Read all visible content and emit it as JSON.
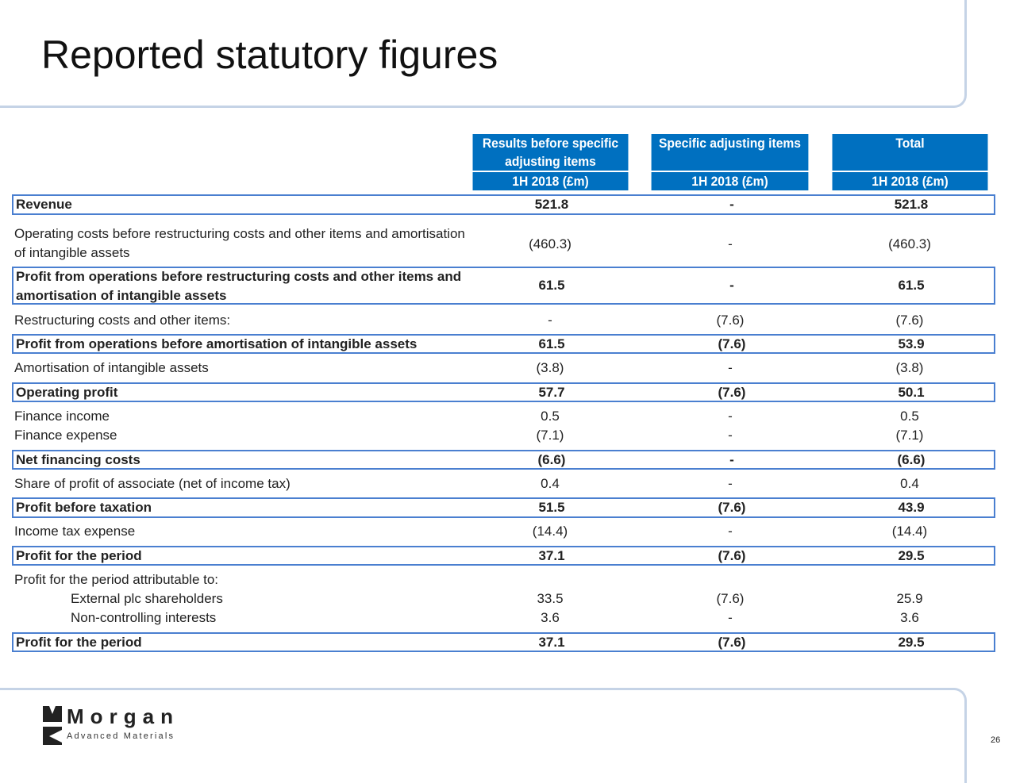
{
  "title": "Reported statutory figures",
  "headers": [
    {
      "label": "Results before specific adjusting items",
      "period": "1H 2018 (£m)"
    },
    {
      "label": "Specific adjusting items",
      "period": "1H 2018 (£m)"
    },
    {
      "label": "Total",
      "period": "1H 2018 (£m)"
    }
  ],
  "rows": [
    {
      "label": "Revenue",
      "values": [
        "521.8",
        "-",
        "521.8"
      ],
      "bold": true,
      "boxed": true
    },
    {
      "label": "Operating costs before restructuring costs and other items and amortisation of intangible assets",
      "values": [
        "(460.3)",
        "-",
        "(460.3)"
      ],
      "bold": false,
      "boxed": false
    },
    {
      "label": "Profit from operations before restructuring costs and other items and amortisation of intangible assets",
      "values": [
        "61.5",
        "-",
        "61.5"
      ],
      "bold": true,
      "boxed": true
    },
    {
      "label": "Restructuring costs and other items:",
      "values": [
        "-",
        "(7.6)",
        "(7.6)"
      ],
      "bold": false,
      "boxed": false
    },
    {
      "label": "Profit from operations before amortisation of intangible assets",
      "values": [
        "61.5",
        "(7.6)",
        "53.9"
      ],
      "bold": true,
      "boxed": true
    },
    {
      "label": "Amortisation of intangible assets",
      "values": [
        "(3.8)",
        "-",
        "(3.8)"
      ],
      "bold": false,
      "boxed": false
    },
    {
      "label": "Operating profit",
      "values": [
        "57.7",
        "(7.6)",
        "50.1"
      ],
      "bold": true,
      "boxed": true
    },
    {
      "label": "Finance income",
      "values": [
        "0.5",
        "-",
        "0.5"
      ],
      "bold": false,
      "boxed": false
    },
    {
      "label": "Finance expense",
      "values": [
        "(7.1)",
        "-",
        "(7.1)"
      ],
      "bold": false,
      "boxed": false
    },
    {
      "label": "Net financing costs",
      "values": [
        "(6.6)",
        "-",
        "(6.6)"
      ],
      "bold": true,
      "boxed": true
    },
    {
      "label": "Share of profit of associate (net of income tax)",
      "values": [
        "0.4",
        "-",
        "0.4"
      ],
      "bold": false,
      "boxed": false
    },
    {
      "label": "Profit before taxation",
      "values": [
        "51.5",
        "(7.6)",
        "43.9"
      ],
      "bold": true,
      "boxed": true
    },
    {
      "label": "Income tax expense",
      "values": [
        "(14.4)",
        "-",
        "(14.4)"
      ],
      "bold": false,
      "boxed": false
    },
    {
      "label": "Profit for the period",
      "values": [
        "37.1",
        "(7.6)",
        "29.5"
      ],
      "bold": true,
      "boxed": true
    },
    {
      "label": "Profit for the period attributable to:",
      "values": [
        "",
        "",
        ""
      ],
      "bold": false,
      "boxed": false
    },
    {
      "label": "External plc shareholders",
      "values": [
        "33.5",
        "(7.6)",
        "25.9"
      ],
      "bold": false,
      "boxed": false,
      "indent": true
    },
    {
      "label": "Non-controlling interests",
      "values": [
        "3.6",
        "-",
        "3.6"
      ],
      "bold": false,
      "boxed": false,
      "indent": true
    },
    {
      "label": "Profit for the period",
      "values": [
        "37.1",
        "(7.6)",
        "29.5"
      ],
      "bold": true,
      "boxed": true
    }
  ],
  "logo": {
    "name": "Morgan",
    "tagline": "Advanced Materials"
  },
  "page_number": "26",
  "colors": {
    "header_bg": "#0070c0",
    "row_border": "#4a7fd0",
    "frame": "#c5d3e6"
  }
}
